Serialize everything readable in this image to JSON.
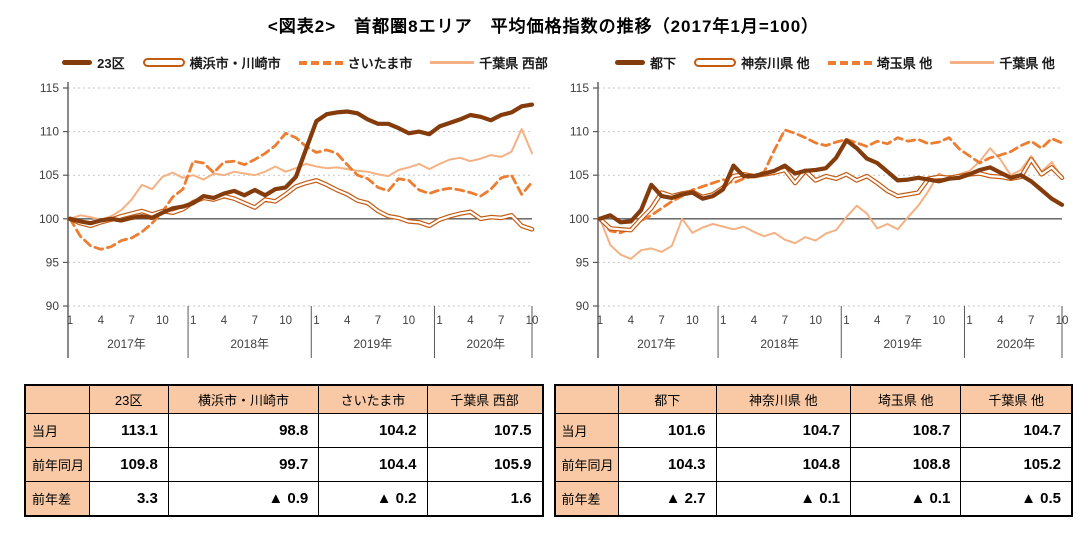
{
  "title": "<図表2>　首都圏8エリア　平均価格指数の推移（2017年1月=100）",
  "chart_data": [
    {
      "type": "line",
      "position": "left",
      "ylim": [
        90,
        115
      ],
      "yticks": [
        90,
        95,
        100,
        105,
        110,
        115
      ],
      "baseline": 100,
      "grid": "horizontal-dashed",
      "legend_position": "top",
      "x_years": [
        "2017年",
        "2018年",
        "2019年",
        "2020年"
      ],
      "months_per_year": [
        12,
        12,
        12,
        10
      ],
      "x_month_ticks": [
        "1",
        "4",
        "7",
        "10"
      ],
      "axis_color": "#595959",
      "grid_color": "#C6C6C6",
      "series": [
        {
          "name": "23区",
          "style": "thick",
          "color": "#843C0C",
          "values": [
            100.0,
            99.7,
            99.5,
            99.8,
            100.0,
            99.8,
            100.1,
            100.3,
            100.1,
            100.7,
            101.2,
            101.4,
            101.8,
            102.6,
            102.4,
            102.9,
            103.2,
            102.7,
            103.3,
            102.7,
            103.4,
            103.6,
            104.8,
            108.0,
            111.2,
            112.0,
            112.2,
            112.3,
            112.1,
            111.4,
            110.9,
            110.9,
            110.4,
            109.8,
            110.0,
            109.7,
            110.6,
            111.0,
            111.4,
            111.9,
            111.7,
            111.3,
            111.9,
            112.2,
            112.9,
            113.1
          ]
        },
        {
          "name": "横浜市・川崎市",
          "style": "double",
          "color": "#C55A11",
          "values": [
            100.0,
            99.5,
            99.2,
            99.6,
            99.9,
            100.3,
            100.6,
            100.9,
            100.5,
            100.9,
            100.7,
            101.1,
            101.9,
            102.4,
            102.2,
            102.6,
            102.3,
            101.8,
            101.3,
            102.2,
            102.0,
            102.8,
            103.7,
            104.1,
            104.4,
            103.9,
            103.3,
            102.8,
            102.1,
            101.8,
            100.9,
            100.3,
            100.1,
            99.7,
            99.6,
            99.2,
            99.9,
            100.3,
            100.6,
            100.8,
            100.0,
            100.2,
            100.1,
            100.4,
            99.2,
            98.8
          ]
        },
        {
          "name": "さいたま市",
          "style": "dashed",
          "color": "#ED7D31",
          "values": [
            100.0,
            98.0,
            96.9,
            96.5,
            96.8,
            97.5,
            97.8,
            98.5,
            99.5,
            100.8,
            102.5,
            103.4,
            106.6,
            106.4,
            105.3,
            106.5,
            106.6,
            106.2,
            106.8,
            107.5,
            108.4,
            109.8,
            109.3,
            108.3,
            107.6,
            107.9,
            107.5,
            106.2,
            105.0,
            104.6,
            103.6,
            103.2,
            104.6,
            104.4,
            103.3,
            102.9,
            103.3,
            103.5,
            103.3,
            103.0,
            102.6,
            103.4,
            104.7,
            105.0,
            102.8,
            104.2
          ]
        },
        {
          "name": "千葉県 西部",
          "style": "thin",
          "color": "#F4B183",
          "values": [
            100.0,
            100.4,
            100.2,
            99.9,
            100.3,
            101.0,
            102.2,
            103.9,
            103.4,
            104.8,
            105.3,
            104.7,
            105.0,
            104.5,
            105.2,
            105.0,
            105.4,
            105.2,
            105.0,
            105.4,
            106.0,
            105.4,
            105.8,
            106.3,
            106.0,
            105.8,
            105.9,
            105.7,
            105.5,
            105.4,
            105.1,
            104.9,
            105.6,
            105.9,
            106.3,
            105.7,
            106.3,
            106.8,
            107.0,
            106.6,
            106.9,
            107.3,
            107.1,
            107.7,
            110.3,
            107.5
          ]
        }
      ]
    },
    {
      "type": "line",
      "position": "right",
      "ylim": [
        90,
        115
      ],
      "yticks": [
        90,
        95,
        100,
        105,
        110,
        115
      ],
      "baseline": 100,
      "grid": "horizontal-dashed",
      "legend_position": "top",
      "x_years": [
        "2017年",
        "2018年",
        "2019年",
        "2020年"
      ],
      "months_per_year": [
        12,
        12,
        12,
        10
      ],
      "x_month_ticks": [
        "1",
        "4",
        "7",
        "10"
      ],
      "axis_color": "#595959",
      "grid_color": "#C6C6C6",
      "series": [
        {
          "name": "都下",
          "style": "thick",
          "color": "#843C0C",
          "values": [
            100.0,
            100.4,
            99.6,
            99.7,
            101.0,
            103.9,
            102.6,
            102.4,
            102.8,
            103.0,
            102.3,
            102.6,
            103.4,
            106.1,
            104.9,
            104.9,
            105.2,
            105.5,
            106.1,
            105.2,
            105.5,
            105.6,
            105.8,
            107.0,
            109.0,
            108.1,
            106.9,
            106.4,
            105.4,
            104.4,
            104.5,
            104.7,
            104.5,
            104.3,
            104.6,
            104.7,
            105.1,
            105.6,
            105.9,
            105.3,
            104.7,
            105.0,
            104.3,
            103.3,
            102.3,
            101.6
          ]
        },
        {
          "name": "神奈川県 他",
          "style": "double",
          "color": "#C55A11",
          "values": [
            100.0,
            98.9,
            98.8,
            98.7,
            100.0,
            101.2,
            103.0,
            102.6,
            102.9,
            103.1,
            102.5,
            102.8,
            103.6,
            104.9,
            105.1,
            104.9,
            105.1,
            105.3,
            105.6,
            104.1,
            105.5,
            104.4,
            104.9,
            104.6,
            105.1,
            104.4,
            104.9,
            104.1,
            103.2,
            102.6,
            102.8,
            103.0,
            104.6,
            104.8,
            104.7,
            104.9,
            105.1,
            105.2,
            104.9,
            104.8,
            104.6,
            104.8,
            106.8,
            105.1,
            105.9,
            104.7
          ]
        },
        {
          "name": "埼玉県 他",
          "style": "dashed",
          "color": "#ED7D31",
          "values": [
            100.0,
            98.6,
            98.4,
            98.9,
            99.8,
            100.4,
            101.2,
            102.0,
            102.6,
            103.3,
            103.7,
            104.1,
            104.5,
            104.1,
            104.6,
            104.9,
            105.4,
            107.9,
            110.2,
            109.8,
            109.3,
            108.7,
            108.4,
            108.8,
            109.1,
            108.7,
            108.3,
            108.9,
            108.6,
            109.3,
            108.9,
            109.1,
            108.6,
            108.8,
            109.3,
            108.0,
            107.2,
            106.4,
            107.0,
            107.3,
            107.7,
            108.4,
            108.9,
            108.1,
            109.2,
            108.7
          ]
        },
        {
          "name": "千葉県 他",
          "style": "thin",
          "color": "#F4B183",
          "values": [
            100.0,
            97.0,
            95.9,
            95.4,
            96.4,
            96.6,
            96.2,
            96.9,
            100.0,
            98.4,
            99.0,
            99.4,
            99.1,
            98.8,
            99.1,
            98.5,
            98.0,
            98.4,
            97.6,
            97.2,
            97.9,
            97.5,
            98.3,
            98.7,
            100.2,
            101.5,
            100.6,
            98.9,
            99.4,
            98.8,
            100.2,
            101.5,
            103.2,
            105.2,
            104.6,
            105.1,
            105.5,
            106.6,
            108.1,
            106.8,
            105.0,
            105.6,
            107.2,
            105.4,
            106.5,
            104.7
          ]
        }
      ]
    }
  ],
  "tables": [
    {
      "columns": [
        "",
        "23区",
        "横浜市・川崎市",
        "さいたま市",
        "千葉県 西部"
      ],
      "rows": [
        {
          "label": "当月",
          "values": [
            "113.1",
            "98.8",
            "104.2",
            "107.5"
          ]
        },
        {
          "label": "前年同月",
          "values": [
            "109.8",
            "99.7",
            "104.4",
            "105.9"
          ]
        },
        {
          "label": "前年差",
          "values": [
            "3.3",
            "▲ 0.9",
            "▲ 0.2",
            "1.6"
          ]
        }
      ],
      "header_bg": "#F8C9A4"
    },
    {
      "columns": [
        "",
        "都下",
        "神奈川県 他",
        "埼玉県 他",
        "千葉県 他"
      ],
      "rows": [
        {
          "label": "当月",
          "values": [
            "101.6",
            "104.7",
            "108.7",
            "104.7"
          ]
        },
        {
          "label": "前年同月",
          "values": [
            "104.3",
            "104.8",
            "108.8",
            "105.2"
          ]
        },
        {
          "label": "前年差",
          "values": [
            "▲ 2.7",
            "▲ 0.1",
            "▲ 0.1",
            "▲ 0.5"
          ]
        }
      ],
      "header_bg": "#F8C9A4"
    }
  ]
}
